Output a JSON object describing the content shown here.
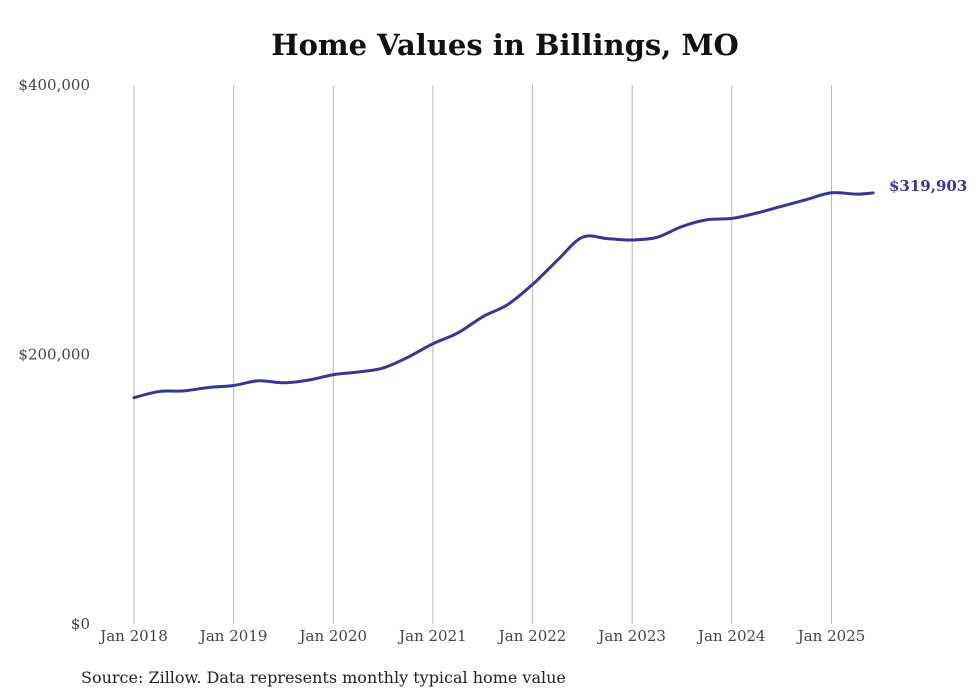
{
  "chart_data": {
    "type": "line",
    "title": "Home Values in Billings, MO",
    "xlabel": "",
    "ylabel": "",
    "x_ticks": [
      "Jan 2018",
      "Jan 2019",
      "Jan 2020",
      "Jan 2021",
      "Jan 2022",
      "Jan 2023",
      "Jan 2024",
      "Jan 2025"
    ],
    "y_ticks": [
      "$0",
      "$200,000",
      "$400,000"
    ],
    "ylim": [
      0,
      400000
    ],
    "xlim": [
      "2018-01",
      "2025-06"
    ],
    "grid": "vertical",
    "series": [
      {
        "color": "#3a3599",
        "end_label": "$319,903",
        "x": [
          "2018-01",
          "2018-04",
          "2018-07",
          "2018-10",
          "2019-01",
          "2019-04",
          "2019-07",
          "2019-10",
          "2020-01",
          "2020-04",
          "2020-07",
          "2020-10",
          "2021-01",
          "2021-04",
          "2021-07",
          "2021-10",
          "2022-01",
          "2022-04",
          "2022-07",
          "2022-10",
          "2023-01",
          "2023-04",
          "2023-07",
          "2023-10",
          "2024-01",
          "2024-04",
          "2024-07",
          "2024-10",
          "2025-01",
          "2025-04",
          "2025-06"
        ],
        "values": [
          168000,
          172500,
          173000,
          175500,
          177000,
          180500,
          179000,
          181000,
          185000,
          187000,
          190000,
          198000,
          208000,
          216000,
          228000,
          237000,
          252000,
          270000,
          287000,
          286000,
          285000,
          287000,
          295000,
          300000,
          301000,
          305000,
          310000,
          315000,
          320000,
          319000,
          319903
        ]
      }
    ]
  },
  "footer": {
    "source_text": "Source: Zillow. Data represents monthly typical home value"
  }
}
